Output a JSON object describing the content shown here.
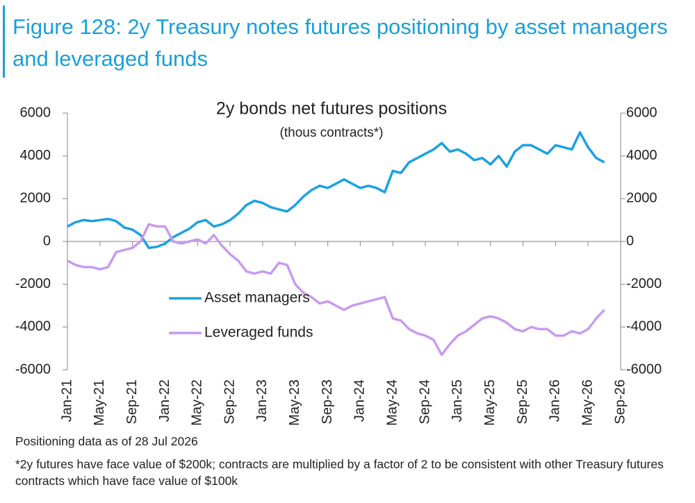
{
  "title": "Figure 128: 2y Treasury notes futures positioning by asset managers and leveraged funds",
  "chart_data": {
    "type": "line",
    "title": "2y bonds net futures positions",
    "subtitle": "(thous contracts*)",
    "categories": [
      "Jan-21",
      null,
      null,
      null,
      "May-21",
      null,
      null,
      null,
      "Sep-21",
      null,
      null,
      null,
      "Jan-22",
      null,
      null,
      null,
      "May-22",
      null,
      null,
      null,
      "Sep-22",
      null,
      null,
      null,
      "Jan-23",
      null,
      null,
      null,
      "May-23",
      null,
      null,
      null,
      "Sep-23",
      null,
      null,
      null,
      "Jan-24",
      null,
      null,
      null,
      "May-24",
      null,
      null,
      null,
      "Sep-24",
      null,
      null,
      null,
      "Jan-25",
      null,
      null,
      null,
      "May-25",
      null,
      null,
      null,
      "Sep-25",
      null,
      null,
      null,
      "Jan-26",
      null,
      null,
      null,
      "May-26",
      null,
      null,
      null,
      "Sep-26"
    ],
    "series": [
      {
        "name": "Asset managers",
        "color": "#1ba1e2",
        "values": [
          700,
          900,
          1000,
          950,
          1000,
          1050,
          950,
          650,
          550,
          300,
          -300,
          -250,
          -100,
          200,
          400,
          600,
          900,
          1000,
          700,
          800,
          1000,
          1300,
          1700,
          1900,
          1800,
          1600,
          1500,
          1400,
          1700,
          2100,
          2400,
          2600,
          2500,
          2700,
          2900,
          2700,
          2500,
          2600,
          2500,
          2300,
          3300,
          3200,
          3700,
          3900,
          4100,
          4300,
          4600,
          4200,
          4300,
          4100,
          3800,
          3900,
          3600,
          4000,
          3500,
          4200,
          4500,
          4500,
          4300,
          4100,
          4500,
          4400,
          4300,
          5100,
          4400,
          3900,
          3700,
          null,
          null
        ]
      },
      {
        "name": "Leveraged funds",
        "color": "#c79bf0",
        "values": [
          -900,
          -1100,
          -1200,
          -1200,
          -1300,
          -1200,
          -500,
          -400,
          -300,
          0,
          800,
          700,
          700,
          0,
          -100,
          0,
          100,
          -100,
          300,
          -200,
          -600,
          -900,
          -1400,
          -1500,
          -1400,
          -1500,
          -1000,
          -1100,
          -2000,
          -2400,
          -2600,
          -2900,
          -2800,
          -3000,
          -3200,
          -3000,
          -2900,
          -2800,
          -2700,
          -2600,
          -3600,
          -3700,
          -4100,
          -4300,
          -4400,
          -4600,
          -5300,
          -4800,
          -4400,
          -4200,
          -3900,
          -3600,
          -3500,
          -3600,
          -3800,
          -4100,
          -4200,
          -4000,
          -4100,
          -4100,
          -4400,
          -4400,
          -4200,
          -4300,
          -4100,
          -3600,
          -3200,
          null,
          null
        ]
      }
    ],
    "ylim": [
      -6000,
      6000
    ],
    "yticks": [
      6000,
      4000,
      2000,
      0,
      -2000,
      -4000,
      -6000
    ],
    "y2lim": [
      -6000,
      6000
    ],
    "y2ticks": [
      6000,
      4000,
      2000,
      0,
      -2000,
      -4000,
      -6000
    ]
  },
  "notes": [
    "Positioning data as of 28 Jul 2026",
    "*2y futures have face value of $200k; contracts are multiplied by a factor of 2 to be consistent with other Treasury futures contracts which have face value of $100k"
  ]
}
